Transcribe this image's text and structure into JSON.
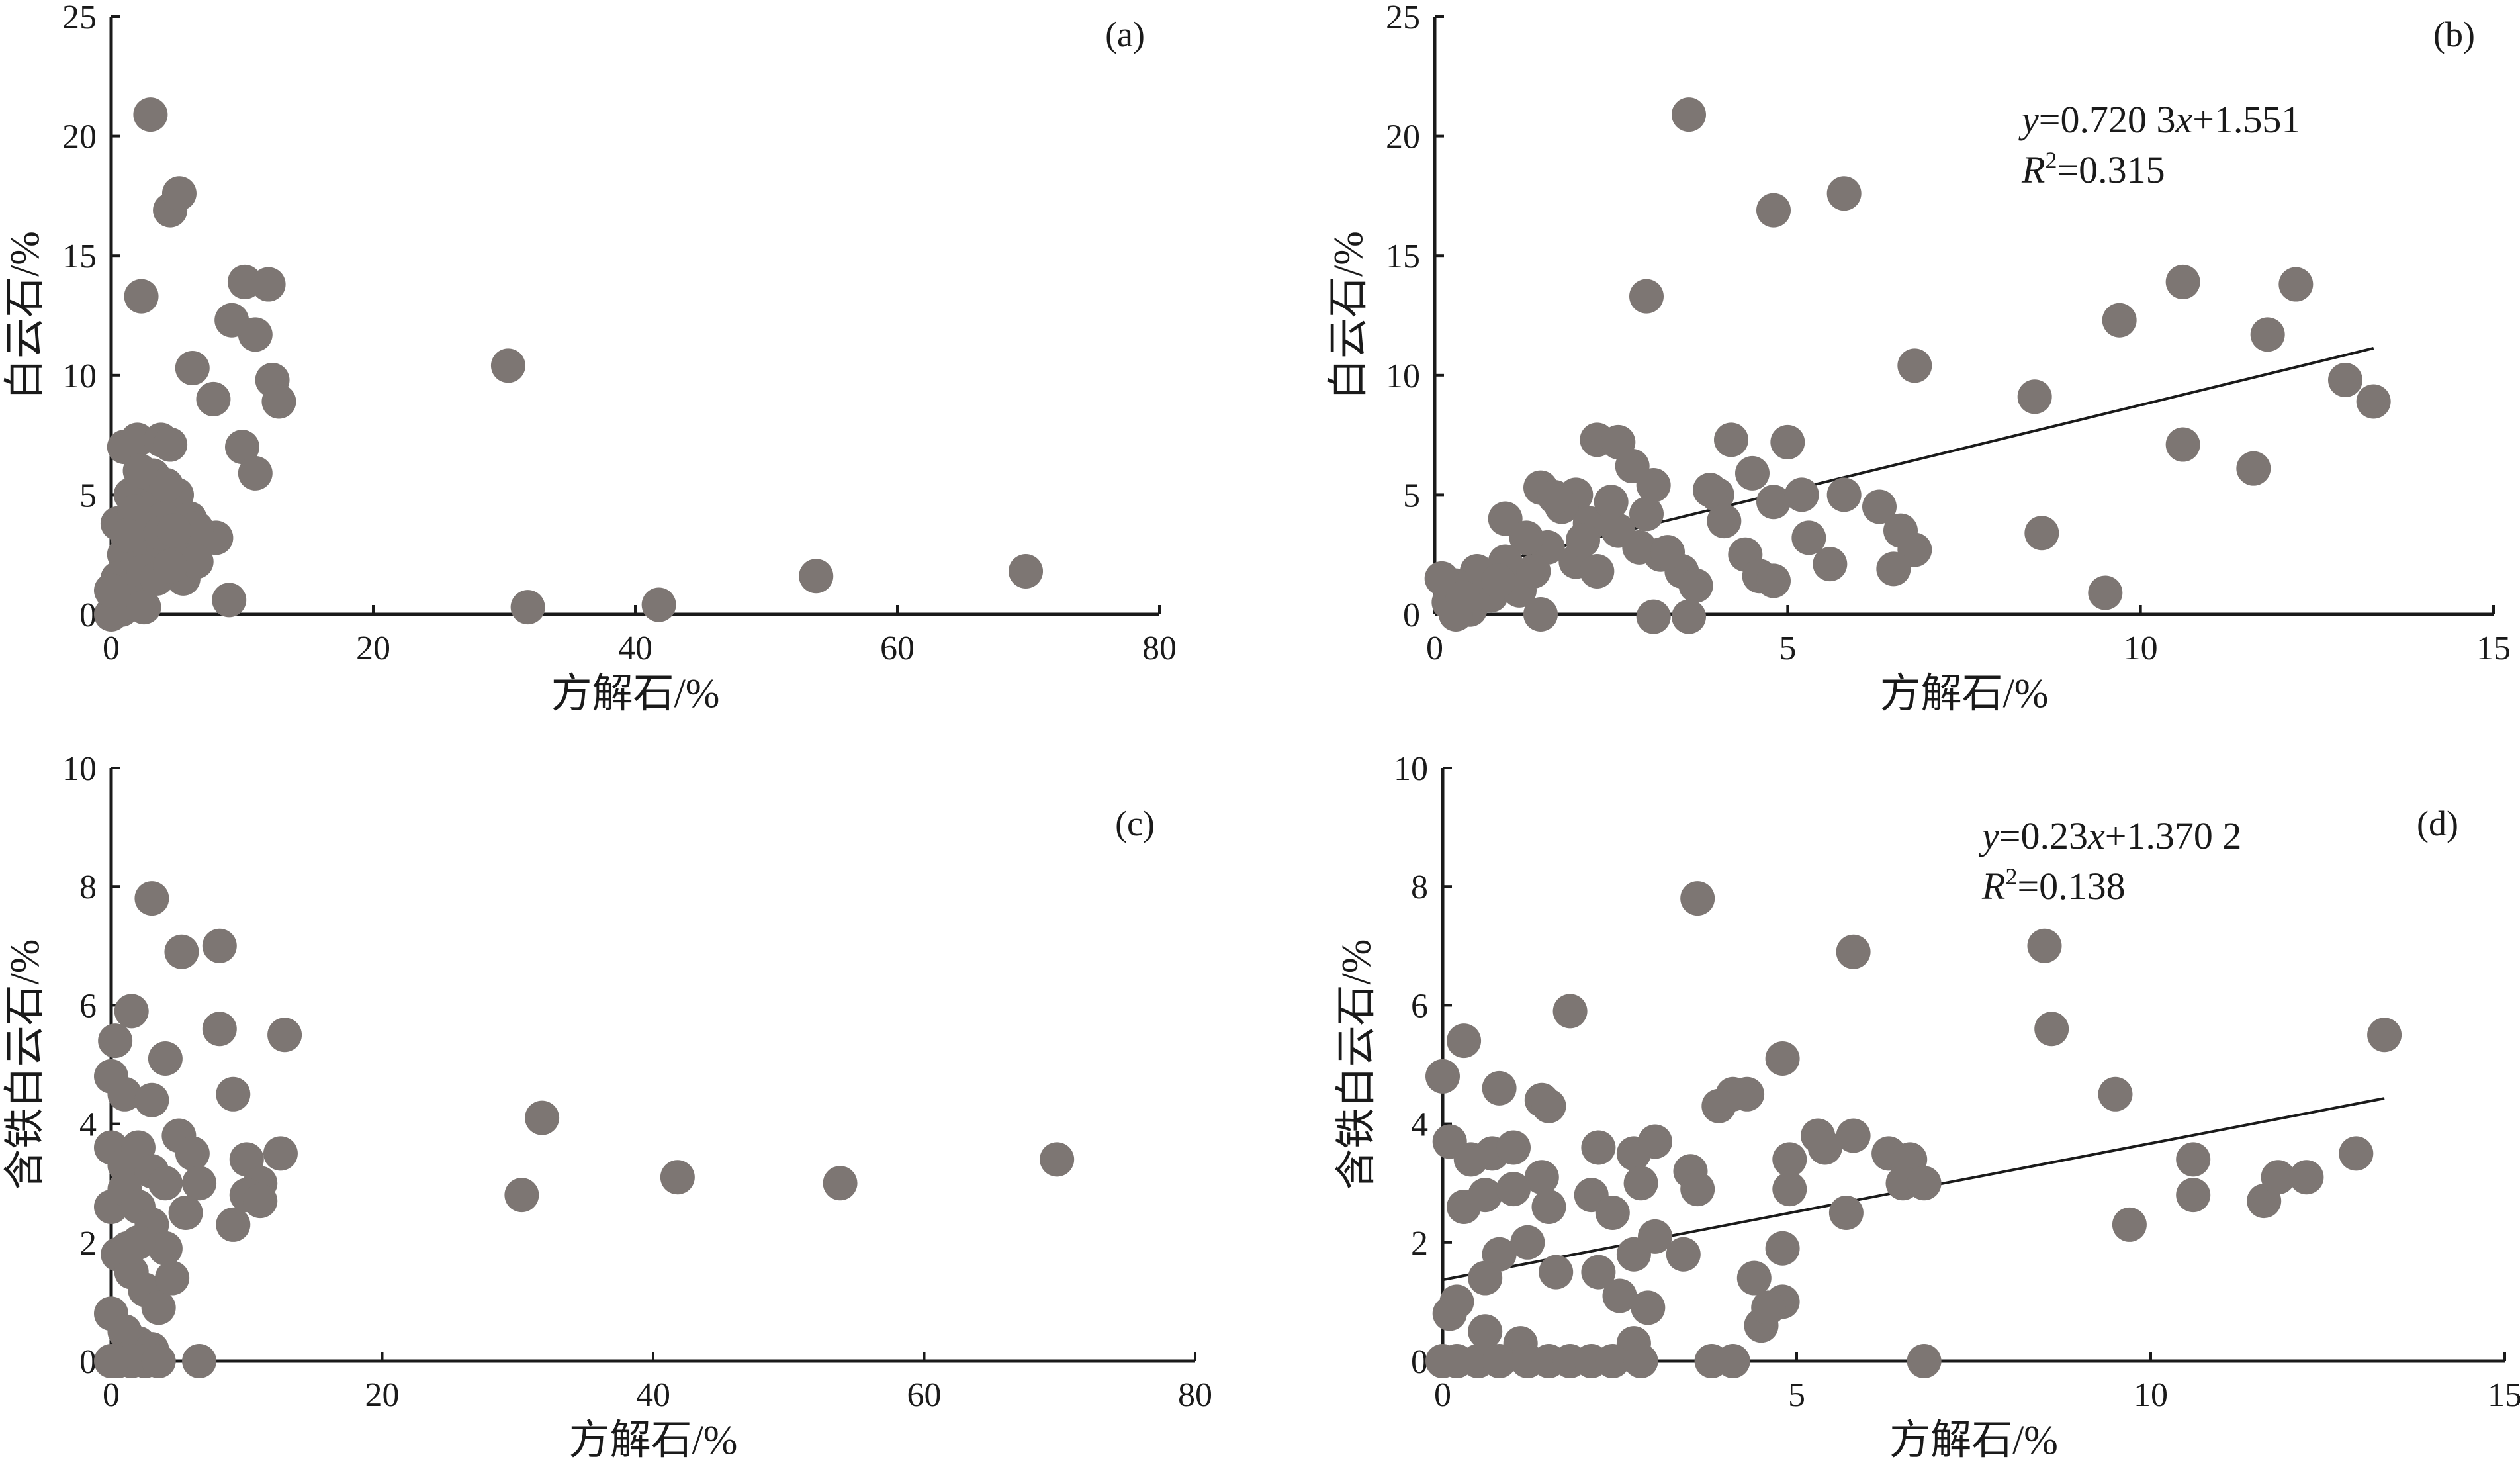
{
  "colors": {
    "marker": "#7d7673",
    "axis": "#1a1a1a",
    "background": "#ffffff"
  },
  "chart_data": [
    {
      "id": "a",
      "type": "scatter",
      "panel_label": "(a)",
      "xlabel": "方解石/%",
      "ylabel": "白云石/%",
      "xlim": [
        0,
        80
      ],
      "ylim": [
        0,
        25
      ],
      "xticks": [
        0,
        20,
        40,
        60,
        80
      ],
      "yticks": [
        0,
        5,
        10,
        15,
        20,
        25
      ],
      "grid": false,
      "legend": "none",
      "points": [
        [
          3.0,
          20.9
        ],
        [
          4.5,
          16.9
        ],
        [
          5.2,
          17.6
        ],
        [
          2.3,
          13.3
        ],
        [
          10.2,
          13.9
        ],
        [
          12.0,
          13.8
        ],
        [
          11.0,
          11.7
        ],
        [
          9.2,
          12.3
        ],
        [
          6.2,
          10.3
        ],
        [
          7.8,
          9.0
        ],
        [
          12.3,
          9.8
        ],
        [
          12.8,
          8.9
        ],
        [
          10.0,
          7.0
        ],
        [
          11.0,
          5.9
        ],
        [
          8.0,
          3.2
        ],
        [
          9.0,
          0.6
        ],
        [
          30.3,
          10.4
        ],
        [
          31.8,
          0.3
        ],
        [
          41.8,
          0.4
        ],
        [
          53.8,
          1.6
        ],
        [
          69.8,
          1.8
        ],
        [
          1.0,
          7.0
        ],
        [
          2.0,
          7.3
        ],
        [
          3.8,
          7.3
        ],
        [
          4.5,
          7.1
        ],
        [
          0.5,
          3.8
        ],
        [
          1.5,
          5.0
        ],
        [
          2.5,
          5.5
        ],
        [
          3.5,
          4.8
        ],
        [
          5.0,
          5.0
        ],
        [
          2.0,
          3.5
        ],
        [
          3.0,
          3.0
        ],
        [
          4.0,
          4.0
        ],
        [
          1.0,
          2.5
        ],
        [
          2.0,
          2.0
        ],
        [
          3.0,
          2.5
        ],
        [
          4.0,
          2.8
        ],
        [
          5.0,
          3.0
        ],
        [
          6.0,
          4.0
        ],
        [
          5.5,
          1.5
        ],
        [
          6.5,
          2.2
        ],
        [
          0.5,
          1.5
        ],
        [
          1.5,
          1.0
        ],
        [
          2.5,
          1.8
        ],
        [
          0.2,
          0.8
        ],
        [
          0.8,
          0.2
        ],
        [
          3.5,
          1.5
        ],
        [
          4.5,
          2.0
        ],
        [
          1.8,
          4.3
        ],
        [
          3.2,
          5.8
        ],
        [
          4.2,
          5.4
        ],
        [
          2.8,
          3.8
        ],
        [
          3.8,
          3.4
        ],
        [
          0.0,
          0.0
        ],
        [
          0.0,
          1.0
        ],
        [
          2.5,
          0.3
        ],
        [
          6.5,
          3.6
        ],
        [
          1.2,
          3.3
        ],
        [
          2.2,
          6.0
        ],
        [
          4.8,
          3.5
        ]
      ]
    },
    {
      "id": "b",
      "type": "scatter",
      "panel_label": "(b)",
      "xlabel": "方解石/%",
      "ylabel": "白云石/%",
      "xlim": [
        0,
        15
      ],
      "ylim": [
        0,
        25
      ],
      "xticks": [
        0,
        5,
        10,
        15
      ],
      "yticks": [
        0,
        5,
        10,
        15,
        20,
        25
      ],
      "grid": false,
      "legend": "none",
      "fit": {
        "slope": 0.7203,
        "intercept": 1.551,
        "x_range": [
          0.2,
          13.3
        ]
      },
      "equation": {
        "y": "y",
        "rest": "=0.720 3",
        "x": "x",
        "tail": "+1.551"
      },
      "r2": {
        "r": "R",
        "sup": "2",
        "rest": "=0.315"
      },
      "points": [
        [
          3.6,
          20.9
        ],
        [
          4.8,
          16.9
        ],
        [
          5.8,
          17.6
        ],
        [
          3.0,
          13.3
        ],
        [
          10.6,
          13.9
        ],
        [
          12.2,
          13.8
        ],
        [
          9.7,
          12.3
        ],
        [
          11.8,
          11.7
        ],
        [
          6.8,
          10.4
        ],
        [
          8.5,
          9.1
        ],
        [
          12.9,
          9.8
        ],
        [
          13.3,
          8.9
        ],
        [
          4.2,
          7.3
        ],
        [
          5.0,
          7.2
        ],
        [
          10.6,
          7.1
        ],
        [
          11.6,
          6.1
        ],
        [
          2.3,
          7.3
        ],
        [
          2.6,
          7.2
        ],
        [
          4.5,
          5.9
        ],
        [
          8.6,
          3.4
        ],
        [
          9.5,
          0.9
        ],
        [
          6.3,
          4.5
        ],
        [
          6.6,
          3.5
        ],
        [
          6.8,
          2.7
        ],
        [
          6.5,
          1.9
        ],
        [
          5.6,
          2.1
        ],
        [
          5.3,
          3.2
        ],
        [
          4.0,
          5.0
        ],
        [
          4.8,
          4.7
        ],
        [
          5.2,
          5.0
        ],
        [
          5.8,
          5.0
        ],
        [
          4.4,
          2.5
        ],
        [
          4.6,
          1.6
        ],
        [
          4.8,
          1.4
        ],
        [
          3.2,
          2.5
        ],
        [
          3.5,
          1.8
        ],
        [
          3.7,
          1.2
        ],
        [
          3.1,
          -0.1
        ],
        [
          3.6,
          -0.1
        ],
        [
          2.8,
          6.2
        ],
        [
          3.1,
          5.4
        ],
        [
          2.0,
          5.0
        ],
        [
          1.5,
          5.3
        ],
        [
          1.8,
          4.5
        ],
        [
          2.2,
          3.8
        ],
        [
          2.6,
          3.5
        ],
        [
          1.6,
          2.8
        ],
        [
          2.0,
          2.2
        ],
        [
          2.3,
          1.8
        ],
        [
          1.0,
          4.0
        ],
        [
          1.3,
          3.2
        ],
        [
          1.0,
          2.2
        ],
        [
          0.6,
          1.8
        ],
        [
          0.3,
          1.2
        ],
        [
          0.2,
          0.5
        ],
        [
          0.5,
          0.2
        ],
        [
          0.8,
          0.8
        ],
        [
          1.2,
          1.0
        ],
        [
          1.5,
          0.0
        ],
        [
          0.1,
          1.5
        ],
        [
          0.3,
          0.0
        ],
        [
          2.9,
          2.8
        ],
        [
          3.3,
          2.6
        ],
        [
          4.1,
          3.9
        ],
        [
          3.9,
          5.2
        ],
        [
          2.5,
          4.7
        ],
        [
          1.7,
          4.9
        ],
        [
          2.1,
          3.1
        ],
        [
          1.4,
          1.8
        ],
        [
          0.9,
          1.4
        ],
        [
          0.4,
          0.7
        ],
        [
          3.0,
          4.2
        ]
      ]
    },
    {
      "id": "c",
      "type": "scatter",
      "panel_label": "(c)",
      "xlabel": "方解石/%",
      "ylabel": "含铁白云石/%",
      "xlim": [
        0,
        80
      ],
      "ylim": [
        0,
        10
      ],
      "xticks": [
        0,
        20,
        40,
        60,
        80
      ],
      "yticks": [
        0,
        2,
        4,
        6,
        8,
        10
      ],
      "grid": false,
      "legend": "none",
      "points": [
        [
          3.0,
          7.8
        ],
        [
          8.0,
          7.0
        ],
        [
          5.2,
          6.9
        ],
        [
          1.5,
          5.9
        ],
        [
          8.0,
          5.6
        ],
        [
          12.8,
          5.5
        ],
        [
          0.3,
          5.4
        ],
        [
          4.0,
          5.1
        ],
        [
          0.0,
          4.8
        ],
        [
          1.0,
          4.5
        ],
        [
          9.0,
          4.5
        ],
        [
          3.0,
          4.4
        ],
        [
          31.8,
          4.1
        ],
        [
          41.8,
          3.1
        ],
        [
          53.8,
          3.0
        ],
        [
          69.8,
          3.4
        ],
        [
          30.3,
          2.8
        ],
        [
          12.5,
          3.5
        ],
        [
          10.0,
          3.4
        ],
        [
          11.0,
          3.0
        ],
        [
          10.0,
          2.8
        ],
        [
          11.0,
          2.7
        ],
        [
          9.0,
          2.3
        ],
        [
          5.0,
          3.8
        ],
        [
          6.0,
          3.5
        ],
        [
          6.5,
          3.0
        ],
        [
          5.5,
          2.5
        ],
        [
          0.0,
          3.6
        ],
        [
          1.0,
          3.3
        ],
        [
          2.0,
          3.6
        ],
        [
          3.0,
          3.2
        ],
        [
          4.0,
          3.0
        ],
        [
          0.0,
          2.6
        ],
        [
          1.0,
          2.9
        ],
        [
          2.0,
          2.6
        ],
        [
          3.0,
          2.3
        ],
        [
          4.0,
          1.9
        ],
        [
          0.5,
          1.8
        ],
        [
          1.5,
          1.5
        ],
        [
          2.5,
          1.2
        ],
        [
          3.5,
          0.9
        ],
        [
          4.5,
          1.4
        ],
        [
          0.0,
          0.8
        ],
        [
          1.0,
          0.5
        ],
        [
          2.0,
          0.3
        ],
        [
          3.0,
          0.2
        ],
        [
          0.5,
          0.0
        ],
        [
          1.5,
          0.0
        ],
        [
          2.5,
          0.0
        ],
        [
          3.5,
          0.0
        ],
        [
          6.5,
          0.0
        ],
        [
          0.0,
          0.0
        ],
        [
          2.0,
          2.0
        ],
        [
          1.2,
          1.9
        ]
      ]
    },
    {
      "id": "d",
      "type": "scatter",
      "panel_label": "(d)",
      "xlabel": "方解石/%",
      "ylabel": "含铁白云石/%",
      "xlim": [
        0,
        15
      ],
      "ylim": [
        0,
        10
      ],
      "xticks": [
        0,
        5,
        10,
        15
      ],
      "yticks": [
        0,
        2,
        4,
        6,
        8,
        10
      ],
      "grid": false,
      "legend": "none",
      "fit": {
        "slope": 0.23,
        "intercept": 1.3702,
        "x_range": [
          0.0,
          13.3
        ]
      },
      "equation": {
        "y": "y",
        "rest": "=0.23",
        "x": "x",
        "tail": "+1.370 2"
      },
      "r2": {
        "r": "R",
        "sup": "2",
        "rest": "=0.138"
      },
      "points": [
        [
          3.6,
          7.8
        ],
        [
          8.5,
          7.0
        ],
        [
          5.8,
          6.9
        ],
        [
          1.8,
          5.9
        ],
        [
          8.6,
          5.6
        ],
        [
          13.3,
          5.5
        ],
        [
          0.3,
          5.4
        ],
        [
          4.8,
          5.1
        ],
        [
          0.0,
          4.8
        ],
        [
          0.8,
          4.6
        ],
        [
          1.4,
          4.4
        ],
        [
          1.5,
          4.3
        ],
        [
          4.1,
          4.5
        ],
        [
          4.3,
          4.5
        ],
        [
          3.9,
          4.3
        ],
        [
          9.5,
          4.5
        ],
        [
          5.3,
          3.8
        ],
        [
          5.8,
          3.8
        ],
        [
          5.4,
          3.6
        ],
        [
          4.9,
          3.4
        ],
        [
          6.3,
          3.5
        ],
        [
          6.6,
          3.4
        ],
        [
          6.5,
          3.0
        ],
        [
          6.8,
          3.0
        ],
        [
          4.9,
          2.9
        ],
        [
          5.7,
          2.5
        ],
        [
          10.6,
          3.4
        ],
        [
          10.6,
          2.8
        ],
        [
          11.6,
          2.7
        ],
        [
          11.8,
          3.1
        ],
        [
          12.2,
          3.1
        ],
        [
          12.9,
          3.5
        ],
        [
          9.7,
          2.3
        ],
        [
          0.1,
          3.7
        ],
        [
          0.4,
          3.4
        ],
        [
          0.7,
          3.5
        ],
        [
          1.0,
          3.6
        ],
        [
          1.4,
          3.1
        ],
        [
          2.2,
          3.6
        ],
        [
          2.7,
          3.5
        ],
        [
          3.0,
          3.7
        ],
        [
          3.5,
          3.2
        ],
        [
          3.6,
          2.9
        ],
        [
          2.8,
          3.0
        ],
        [
          0.3,
          2.6
        ],
        [
          0.6,
          2.8
        ],
        [
          1.0,
          2.9
        ],
        [
          1.5,
          2.6
        ],
        [
          2.1,
          2.8
        ],
        [
          2.4,
          2.5
        ],
        [
          3.0,
          2.1
        ],
        [
          0.8,
          1.8
        ],
        [
          1.2,
          2.0
        ],
        [
          1.6,
          1.5
        ],
        [
          2.2,
          1.5
        ],
        [
          2.7,
          1.8
        ],
        [
          3.4,
          1.8
        ],
        [
          4.4,
          1.4
        ],
        [
          4.8,
          1.9
        ],
        [
          2.5,
          1.1
        ],
        [
          2.9,
          0.9
        ],
        [
          4.8,
          1.0
        ],
        [
          0.6,
          1.4
        ],
        [
          0.1,
          0.8
        ],
        [
          0.2,
          1.0
        ],
        [
          0.6,
          0.5
        ],
        [
          1.1,
          0.3
        ],
        [
          4.5,
          0.6
        ],
        [
          4.6,
          0.9
        ],
        [
          2.7,
          0.3
        ],
        [
          0.0,
          0.0
        ],
        [
          0.2,
          0.0
        ],
        [
          0.5,
          0.0
        ],
        [
          0.8,
          0.0
        ],
        [
          1.2,
          0.0
        ],
        [
          1.5,
          0.0
        ],
        [
          1.8,
          0.0
        ],
        [
          2.1,
          0.0
        ],
        [
          2.4,
          0.0
        ],
        [
          2.8,
          0.0
        ],
        [
          3.8,
          0.0
        ],
        [
          4.1,
          0.0
        ],
        [
          6.8,
          0.0
        ]
      ]
    }
  ]
}
